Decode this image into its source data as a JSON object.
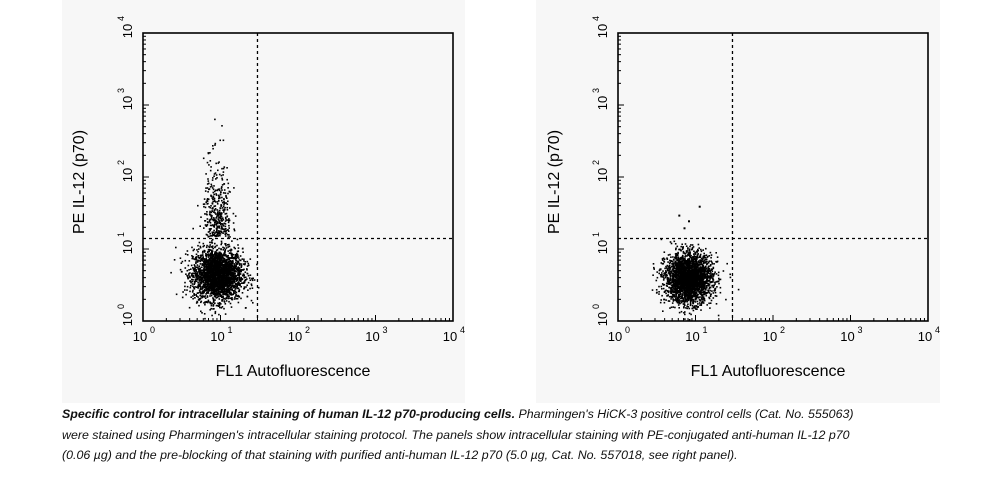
{
  "chart_data": [
    {
      "type": "scatter",
      "panel": "left",
      "title": "",
      "xlabel": "FL1 Autofluorescence",
      "ylabel": "PE IL-12 (p70)",
      "xscale": "log",
      "yscale": "log",
      "xlim": [
        1,
        10000
      ],
      "ylim": [
        1,
        10000
      ],
      "x_ticks": [
        1,
        10,
        100,
        1000,
        10000
      ],
      "y_ticks": [
        1,
        10,
        100,
        1000,
        10000
      ],
      "quadrant_gate": {
        "x": 30,
        "y": 14
      },
      "populations": [
        {
          "name": "",
          "center": {
            "x": 9,
            "y": 4.5
          },
          "spread_decades": {
            "x": 0.16,
            "y": 0.18
          },
          "approx_events": 2600
        },
        {
          "name": "",
          "center": {
            "x": 9,
            "y": 60
          },
          "spread_decades": {
            "x": 0.09,
            "y": 0.45
          },
          "approx_events": 380
        }
      ]
    },
    {
      "type": "scatter",
      "panel": "right",
      "title": "",
      "xlabel": "FL1 Autofluorescence",
      "ylabel": "PE IL-12 (p70)",
      "xscale": "log",
      "yscale": "log",
      "xlim": [
        1,
        10000
      ],
      "ylim": [
        1,
        10000
      ],
      "x_ticks": [
        1,
        10,
        100,
        1000,
        10000
      ],
      "y_ticks": [
        1,
        10,
        100,
        1000,
        10000
      ],
      "quadrant_gate": {
        "x": 30,
        "y": 14
      },
      "populations": [
        {
          "name": "",
          "center": {
            "x": 8,
            "y": 4
          },
          "spread_decades": {
            "x": 0.15,
            "y": 0.17
          },
          "approx_events": 2700
        }
      ],
      "outliers": [
        {
          "x": 6,
          "y": 30
        },
        {
          "x": 8,
          "y": 25
        },
        {
          "x": 11,
          "y": 40
        },
        {
          "x": 7,
          "y": 20
        }
      ]
    }
  ],
  "caption": {
    "bold_part": "Specific control for intracellular staining of human IL-12 p70-producing cells.",
    "rest": "Pharmingen's HiCK-3 positive control cells (Cat. No. 555063) were stained using Pharmingen's intracellular staining protocol.  The panels show intracellular staining with PE-conjugated anti-human IL-12 p70 (0.06 µg) and the pre-blocking of that staining with purified anti-human IL-12 p70 (5.0 µg, Cat. No. 557018, see right panel)."
  }
}
